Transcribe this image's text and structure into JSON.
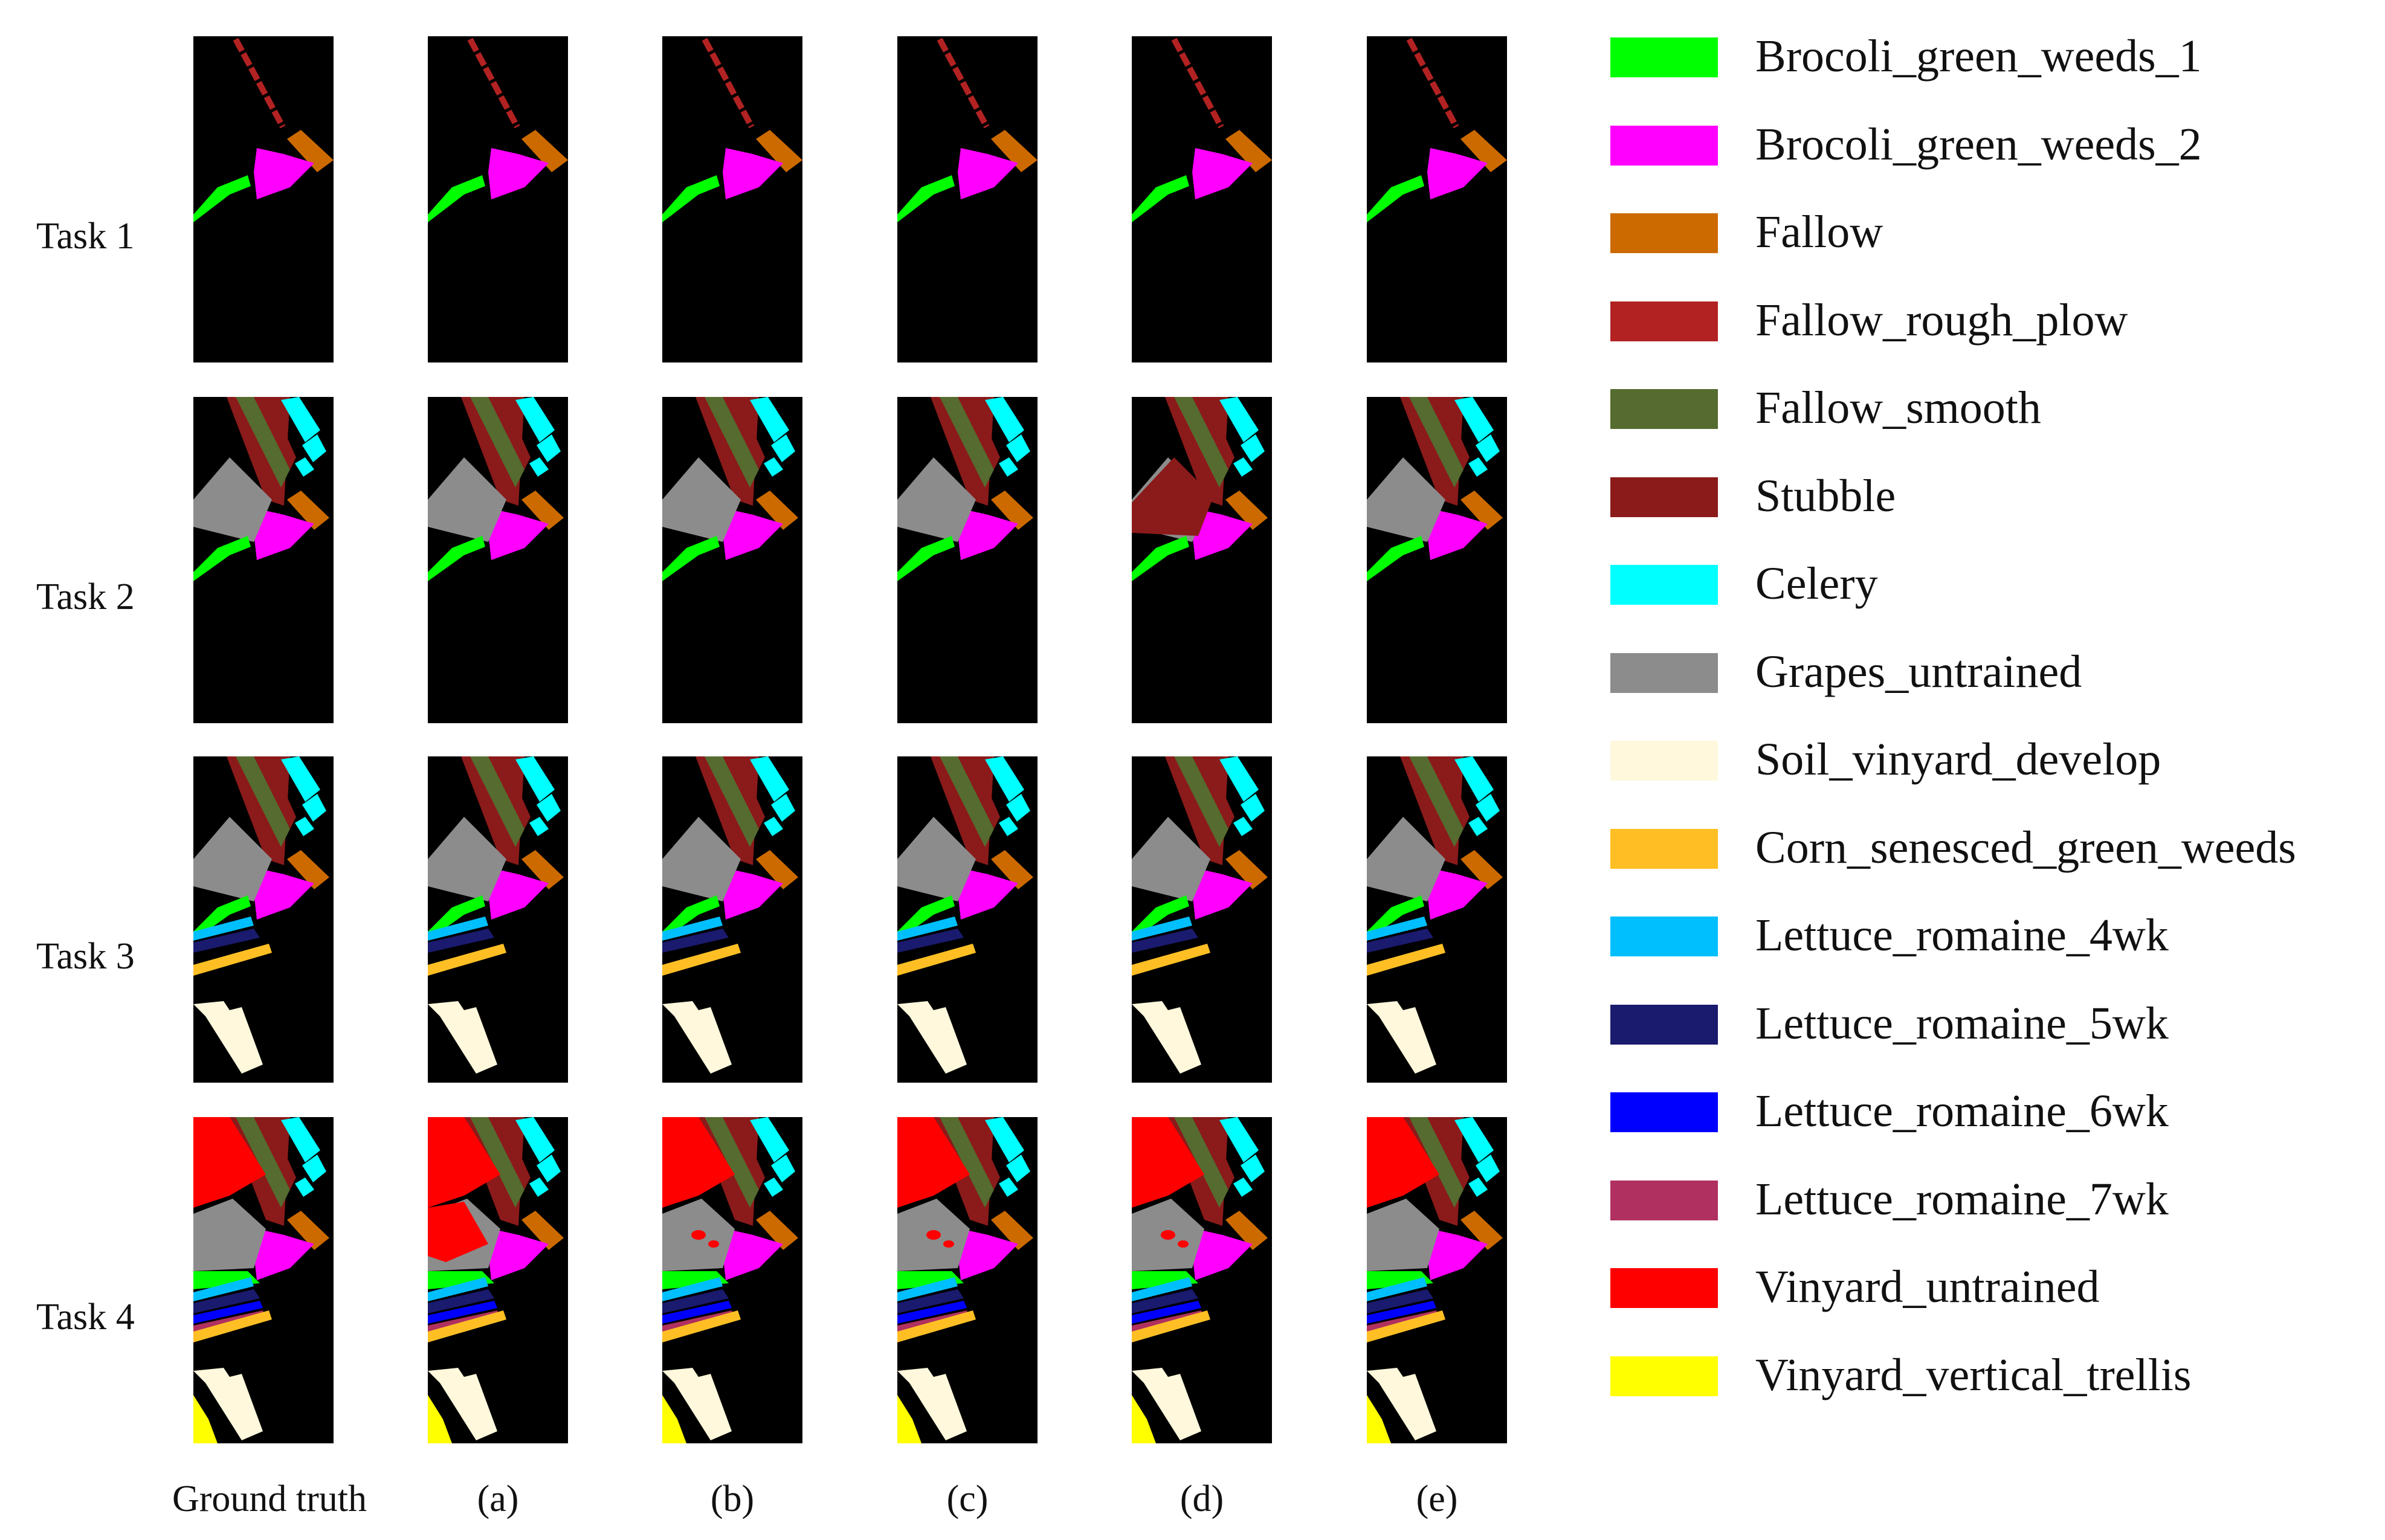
{
  "rows": [
    {
      "label": "Task 1",
      "task": 1
    },
    {
      "label": "Task 2",
      "task": 2
    },
    {
      "label": "Task 3",
      "task": 3
    },
    {
      "label": "Task 4",
      "task": 4
    }
  ],
  "columns": [
    {
      "label": "Ground truth"
    },
    {
      "label": "(a)"
    },
    {
      "label": "(b)"
    },
    {
      "label": "(c)"
    },
    {
      "label": "(d)"
    },
    {
      "label": "(e)"
    }
  ],
  "legend": [
    {
      "label": "Brocoli_green_weeds_1",
      "color": "#00ff00"
    },
    {
      "label": "Brocoli_green_weeds_2",
      "color": "#ff00ff"
    },
    {
      "label": "Fallow",
      "color": "#cc6a00"
    },
    {
      "label": "Fallow_rough_plow",
      "color": "#b22222"
    },
    {
      "label": "Fallow_smooth",
      "color": "#556b2f"
    },
    {
      "label": "Stubble",
      "color": "#8b1a1a"
    },
    {
      "label": "Celery",
      "color": "#00ffff"
    },
    {
      "label": "Grapes_untrained",
      "color": "#8c8c8c"
    },
    {
      "label": "Soil_vinyard_develop",
      "color": "#fff8dc"
    },
    {
      "label": "Corn_senesced_green_weeds",
      "color": "#ffbf24"
    },
    {
      "label": "Lettuce_romaine_4wk",
      "color": "#00bfff"
    },
    {
      "label": "Lettuce_romaine_5wk",
      "color": "#1a1a6e"
    },
    {
      "label": "Lettuce_romaine_6wk",
      "color": "#0000ff"
    },
    {
      "label": "Lettuce_romaine_7wk",
      "color": "#b03060"
    },
    {
      "label": "Vinyard_untrained",
      "color": "#ff0000"
    },
    {
      "label": "Vinyard_vertical_trellis",
      "color": "#ffff00"
    }
  ]
}
